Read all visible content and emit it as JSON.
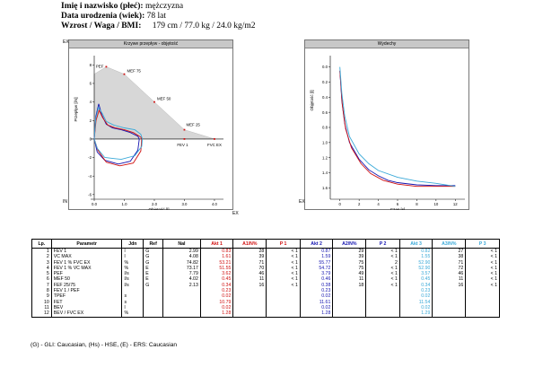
{
  "header": {
    "name_label": "Imię i nazwisko (płeć):",
    "name_value": "mężczyzna",
    "birth_label": "Data urodzenia (wiek):",
    "birth_value": "78 lat",
    "hw_label": "Wzrost / Waga / BMI:",
    "hw_value": "179 cm / 77.0 kg / 24.0 kg/m2"
  },
  "flow_chart": {
    "title": "Krzywe przepływ - objętość",
    "xlabel": "Objętość [l]",
    "ylabel": "Przepływ [l/s]",
    "ex_top": "EX",
    "ex_right": "EX",
    "in_label": "IN",
    "x_ticks": [
      "0.0",
      "1.0",
      "2.0",
      "3.0",
      "4.0"
    ],
    "y_ticks": [
      "8",
      "6",
      "4",
      "2",
      "0",
      "-2",
      "-4",
      "-6"
    ],
    "markers": [
      {
        "label": "PEF",
        "x": 0.4,
        "y": 7.8
      },
      {
        "label": "MEF 75",
        "x": 1.0,
        "y": 7.0
      },
      {
        "label": "MEF 50",
        "x": 2.0,
        "y": 4.0
      },
      {
        "label": "MEF 25",
        "x": 3.0,
        "y": 1.0
      },
      {
        "label": "FEV 1",
        "x": 3.0,
        "y": 0.0
      },
      {
        "label": "FVC EX",
        "x": 4.0,
        "y": 0.0
      }
    ],
    "predicted_polygon": [
      [
        0,
        0
      ],
      [
        0,
        7.0
      ],
      [
        0.4,
        7.8
      ],
      [
        1.0,
        7.0
      ],
      [
        2.0,
        4.0
      ],
      [
        3.0,
        1.0
      ],
      [
        4.0,
        0
      ],
      [
        0,
        0
      ]
    ],
    "series": [
      {
        "color": "#1414b0",
        "exp": [
          [
            0,
            0
          ],
          [
            0.05,
            2.4
          ],
          [
            0.15,
            3.8
          ],
          [
            0.25,
            2.6
          ],
          [
            0.4,
            1.6
          ],
          [
            0.6,
            1.2
          ],
          [
            0.9,
            1.0
          ],
          [
            1.2,
            0.7
          ],
          [
            1.45,
            0.3
          ],
          [
            1.5,
            0
          ]
        ],
        "insp": [
          [
            0,
            0
          ],
          [
            0.1,
            -1.4
          ],
          [
            0.35,
            -2.3
          ],
          [
            0.8,
            -2.7
          ],
          [
            1.2,
            -2.4
          ],
          [
            1.45,
            -1.2
          ],
          [
            1.5,
            0
          ]
        ]
      },
      {
        "color": "#d01010",
        "exp": [
          [
            0,
            0
          ],
          [
            0.06,
            2.0
          ],
          [
            0.16,
            3.1
          ],
          [
            0.28,
            2.3
          ],
          [
            0.45,
            1.5
          ],
          [
            0.7,
            1.2
          ],
          [
            1.0,
            1.0
          ],
          [
            1.3,
            0.7
          ],
          [
            1.55,
            0.2
          ],
          [
            1.58,
            0
          ]
        ],
        "insp": [
          [
            0,
            0
          ],
          [
            0.12,
            -1.2
          ],
          [
            0.4,
            -2.5
          ],
          [
            0.85,
            -2.9
          ],
          [
            1.3,
            -2.6
          ],
          [
            1.55,
            -1.3
          ],
          [
            1.58,
            0
          ]
        ]
      },
      {
        "color": "#3aa9d8",
        "exp": [
          [
            0,
            0
          ],
          [
            0.05,
            2.2
          ],
          [
            0.14,
            3.4
          ],
          [
            0.26,
            2.8
          ],
          [
            0.4,
            1.9
          ],
          [
            0.65,
            1.5
          ],
          [
            1.0,
            1.2
          ],
          [
            1.35,
            1.0
          ],
          [
            1.55,
            0.5
          ],
          [
            1.6,
            0
          ]
        ],
        "insp": [
          [
            0,
            0
          ],
          [
            0.1,
            -1.0
          ],
          [
            0.35,
            -2.0
          ],
          [
            0.9,
            -2.2
          ],
          [
            1.35,
            -1.8
          ],
          [
            1.58,
            -0.8
          ],
          [
            1.6,
            0
          ]
        ]
      }
    ]
  },
  "vol_chart": {
    "title": "Wydechy",
    "xlabel": "Czas [s]",
    "ylabel": "Objętość [l]",
    "ex_label": "EX",
    "x_ticks": [
      "0",
      "2",
      "4",
      "6",
      "8",
      "10",
      "12"
    ],
    "y_ticks": [
      "0.0",
      "0.2",
      "0.4",
      "0.6",
      "0.8",
      "1.0",
      "1.2",
      "1.4",
      "1.6"
    ],
    "series": [
      {
        "color": "#1414b0",
        "points": [
          [
            0,
            0.05
          ],
          [
            0.2,
            0.45
          ],
          [
            0.5,
            0.75
          ],
          [
            1,
            1.0
          ],
          [
            2,
            1.22
          ],
          [
            3,
            1.36
          ],
          [
            4,
            1.44
          ],
          [
            5,
            1.5
          ],
          [
            6,
            1.53
          ],
          [
            8,
            1.56
          ],
          [
            10,
            1.57
          ],
          [
            12,
            1.57
          ]
        ]
      },
      {
        "color": "#d01010",
        "points": [
          [
            0,
            0.05
          ],
          [
            0.25,
            0.5
          ],
          [
            0.6,
            0.82
          ],
          [
            1.2,
            1.07
          ],
          [
            2.2,
            1.28
          ],
          [
            3.2,
            1.41
          ],
          [
            4.5,
            1.5
          ],
          [
            6,
            1.55
          ],
          [
            8,
            1.58
          ],
          [
            10,
            1.58
          ],
          [
            12,
            1.58
          ]
        ]
      },
      {
        "color": "#3aa9d8",
        "points": [
          [
            0,
            0.0
          ],
          [
            0.2,
            0.35
          ],
          [
            0.5,
            0.65
          ],
          [
            1,
            0.92
          ],
          [
            2,
            1.15
          ],
          [
            3,
            1.28
          ],
          [
            4,
            1.37
          ],
          [
            6,
            1.46
          ],
          [
            8,
            1.51
          ],
          [
            10,
            1.54
          ],
          [
            12,
            1.58
          ]
        ]
      }
    ]
  },
  "table": {
    "headers": {
      "lp": "Lp.",
      "param": "Parametr",
      "jdn": "Jdn",
      "ref": "Ref",
      "nal": "Nal",
      "akt1": "Akt 1",
      "a1n": "A1/N%",
      "p1": "P 1",
      "akt2": "Akt 2",
      "a2n": "A2/N%",
      "p2": "P 2",
      "akt3": "Akt 3",
      "a3n": "A3/N%",
      "p3": "P 3"
    },
    "rows": [
      {
        "lp": "1",
        "param": "FEV 1",
        "jdn": "l",
        "ref": "G",
        "nal": "2.99",
        "akt1": "0.83",
        "a1n": "28",
        "p1": "< 1",
        "akt2": "0.87",
        "a2n": "29",
        "p2": "< 1",
        "akt3": "0.82",
        "a3n": "27",
        "p3": "< 1"
      },
      {
        "lp": "2",
        "param": "VC MAX",
        "jdn": "l",
        "ref": "G",
        "nal": "4.08",
        "akt1": "1.61",
        "a1n": "39",
        "p1": "< 1",
        "akt2": "1.59",
        "a2n": "39",
        "p2": "< 1",
        "akt3": "1.55",
        "a3n": "38",
        "p3": "< 1"
      },
      {
        "lp": "3",
        "param": "FEV 1 % FVC EX",
        "jdn": "%",
        "ref": "G",
        "nal": "74.82",
        "akt1": "53.21",
        "a1n": "71",
        "p1": "< 1",
        "akt2": "55.77",
        "a2n": "75",
        "p2": "2",
        "akt3": "52.90",
        "a3n": "71",
        "p3": "< 1"
      },
      {
        "lp": "4",
        "param": "FEV 1 % VC MAX",
        "jdn": "%",
        "ref": "E",
        "nal": "73.17",
        "akt1": "51.55",
        "a1n": "70",
        "p1": "< 1",
        "akt2": "54.72",
        "a2n": "75",
        "p2": "< 1",
        "akt3": "52.90",
        "a3n": "72",
        "p3": "< 1"
      },
      {
        "lp": "5",
        "param": "PEF",
        "jdn": "l/s",
        "ref": "E",
        "nal": "7.79",
        "akt1": "3.62",
        "a1n": "46",
        "p1": "< 1",
        "akt2": "3.79",
        "a2n": "49",
        "p2": "< 1",
        "akt3": "3.57",
        "a3n": "46",
        "p3": "< 1"
      },
      {
        "lp": "6",
        "param": "MEF 50",
        "jdn": "l/s",
        "ref": "E",
        "nal": "4.02",
        "akt1": "0.45",
        "a1n": "11",
        "p1": "< 1",
        "akt2": "0.46",
        "a2n": "11",
        "p2": "< 1",
        "akt3": "0.45",
        "a3n": "11",
        "p3": "< 1"
      },
      {
        "lp": "7",
        "param": "FEF 25/75",
        "jdn": "l/s",
        "ref": "G",
        "nal": "2.13",
        "akt1": "0.34",
        "a1n": "16",
        "p1": "< 1",
        "akt2": "0.38",
        "a2n": "18",
        "p2": "< 1",
        "akt3": "0.34",
        "a3n": "16",
        "p3": "< 1"
      },
      {
        "lp": "8",
        "param": "FEV 1 / PEF",
        "jdn": "",
        "ref": "",
        "nal": "",
        "akt1": "0.23",
        "a1n": "",
        "p1": "",
        "akt2": "0.23",
        "a2n": "",
        "p2": "",
        "akt3": "0.23",
        "a3n": "",
        "p3": ""
      },
      {
        "lp": "9",
        "param": "TPEF",
        "jdn": "s",
        "ref": "",
        "nal": "",
        "akt1": "0.02",
        "a1n": "",
        "p1": "",
        "akt2": "0.02",
        "a2n": "",
        "p2": "",
        "akt3": "0.02",
        "a3n": "",
        "p3": ""
      },
      {
        "lp": "10",
        "param": "FET",
        "jdn": "s",
        "ref": "",
        "nal": "",
        "akt1": "10.79",
        "a1n": "",
        "p1": "",
        "akt2": "11.61",
        "a2n": "",
        "p2": "",
        "akt3": "11.54",
        "a3n": "",
        "p3": ""
      },
      {
        "lp": "11",
        "param": "BEV",
        "jdn": "l",
        "ref": "",
        "nal": "",
        "akt1": "0.02",
        "a1n": "",
        "p1": "",
        "akt2": "0.02",
        "a2n": "",
        "p2": "",
        "akt3": "0.02",
        "a3n": "",
        "p3": ""
      },
      {
        "lp": "12",
        "param": "BEV / FVC EX",
        "jdn": "%",
        "ref": "",
        "nal": "",
        "akt1": "1.28",
        "a1n": "",
        "p1": "",
        "akt2": "1.28",
        "a2n": "",
        "p2": "",
        "akt3": "1.29",
        "a3n": "",
        "p3": ""
      }
    ]
  },
  "footer": "(G) - GLI: Caucasian, (Hs) - HSE, (E) - ERS: Caucasian",
  "chart_data": [
    {
      "type": "line",
      "title": "Krzywe przepływ - objętość",
      "xlabel": "Objętość [l]",
      "ylabel": "Przepływ [l/s]",
      "xlim": [
        0,
        4.4
      ],
      "ylim": [
        -6.5,
        9
      ],
      "legend": "none",
      "series": [
        {
          "x": [
            0,
            0.05,
            0.15,
            0.25,
            0.4,
            0.6,
            0.9,
            1.2,
            1.45,
            1.5
          ],
          "y": [
            0,
            2.4,
            3.8,
            2.6,
            1.6,
            1.2,
            1.0,
            0.7,
            0.3,
            0
          ]
        },
        {
          "x": [
            0,
            0.06,
            0.16,
            0.28,
            0.45,
            0.7,
            1.0,
            1.3,
            1.55,
            1.58
          ],
          "y": [
            0,
            2.0,
            3.1,
            2.3,
            1.5,
            1.2,
            1.0,
            0.7,
            0.2,
            0
          ]
        },
        {
          "x": [
            0,
            0.05,
            0.14,
            0.26,
            0.4,
            0.65,
            1.0,
            1.35,
            1.55,
            1.6
          ],
          "y": [
            0,
            2.2,
            3.4,
            2.8,
            1.9,
            1.5,
            1.2,
            1.0,
            0.5,
            0
          ]
        }
      ]
    },
    {
      "type": "line",
      "title": "Wydechy",
      "xlabel": "Czas [s]",
      "ylabel": "Objętość [l]",
      "xlim": [
        -1,
        13
      ],
      "ylim": [
        1.75,
        -0.15
      ],
      "legend": "none",
      "series": [
        {
          "x": [
            0,
            0.2,
            0.5,
            1,
            2,
            3,
            4,
            5,
            6,
            8,
            10,
            12
          ],
          "y": [
            0.05,
            0.45,
            0.75,
            1.0,
            1.22,
            1.36,
            1.44,
            1.5,
            1.53,
            1.56,
            1.57,
            1.57
          ]
        },
        {
          "x": [
            0,
            0.25,
            0.6,
            1.2,
            2.2,
            3.2,
            4.5,
            6,
            8,
            10,
            12
          ],
          "y": [
            0.05,
            0.5,
            0.82,
            1.07,
            1.28,
            1.41,
            1.5,
            1.55,
            1.58,
            1.58,
            1.58
          ]
        },
        {
          "x": [
            0,
            0.2,
            0.5,
            1,
            2,
            3,
            4,
            6,
            8,
            10,
            12
          ],
          "y": [
            0.0,
            0.35,
            0.65,
            0.92,
            1.15,
            1.28,
            1.37,
            1.46,
            1.51,
            1.54,
            1.58
          ]
        }
      ]
    }
  ]
}
